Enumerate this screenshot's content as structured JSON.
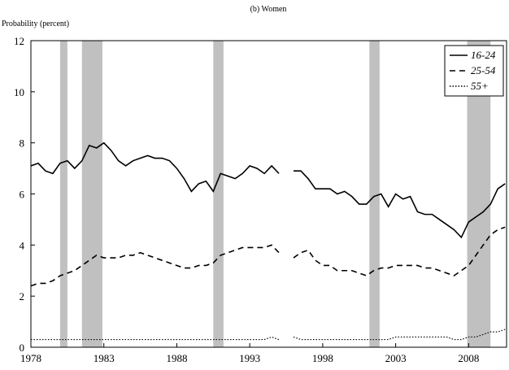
{
  "chart_data": {
    "type": "line",
    "title": "(b) Women",
    "y_label": "Probability (percent)",
    "x": [
      1978,
      1978.5,
      1979,
      1979.5,
      1980,
      1980.5,
      1981,
      1981.5,
      1982,
      1982.5,
      1983,
      1983.5,
      1984,
      1984.5,
      1985,
      1985.5,
      1986,
      1986.5,
      1987,
      1987.5,
      1988,
      1988.5,
      1989,
      1989.5,
      1990,
      1990.5,
      1991,
      1991.5,
      1992,
      1992.5,
      1993,
      1993.5,
      1994,
      1994.5,
      1995,
      1995.5,
      1996,
      1996.5,
      1997,
      1997.5,
      1998,
      1998.5,
      1999,
      1999.5,
      2000,
      2000.5,
      2001,
      2001.5,
      2002,
      2002.5,
      2003,
      2003.5,
      2004,
      2004.5,
      2005,
      2005.5,
      2006,
      2006.5,
      2007,
      2007.5,
      2008,
      2008.5,
      2009,
      2009.5,
      2010,
      2010.5
    ],
    "series": [
      {
        "name": "16-24",
        "color": "#000000",
        "dash": "none",
        "values": [
          7.1,
          7.2,
          6.9,
          6.8,
          7.2,
          7.3,
          7.0,
          7.3,
          7.9,
          7.8,
          8.0,
          7.7,
          7.3,
          7.1,
          7.3,
          7.4,
          7.5,
          7.4,
          7.4,
          7.3,
          7.0,
          6.6,
          6.1,
          6.4,
          6.5,
          6.1,
          6.8,
          6.7,
          6.6,
          6.8,
          7.1,
          7.0,
          6.8,
          7.1,
          6.8,
          null,
          6.9,
          6.9,
          6.6,
          6.2,
          6.2,
          6.2,
          6.0,
          6.1,
          5.9,
          5.6,
          5.6,
          5.9,
          6.0,
          5.5,
          6.0,
          5.8,
          5.9,
          5.3,
          5.2,
          5.2,
          5.0,
          4.8,
          4.6,
          4.3,
          4.9,
          5.1,
          5.3,
          5.6,
          6.2,
          6.4
        ]
      },
      {
        "name": "25-54",
        "color": "#000000",
        "dash": "7 5",
        "values": [
          2.4,
          2.5,
          2.5,
          2.6,
          2.8,
          2.9,
          3.0,
          3.2,
          3.4,
          3.6,
          3.5,
          3.5,
          3.5,
          3.6,
          3.6,
          3.7,
          3.6,
          3.5,
          3.4,
          3.3,
          3.2,
          3.1,
          3.1,
          3.2,
          3.2,
          3.3,
          3.6,
          3.7,
          3.8,
          3.9,
          3.9,
          3.9,
          3.9,
          4.0,
          3.7,
          null,
          3.5,
          3.7,
          3.8,
          3.4,
          3.2,
          3.2,
          3.0,
          3.0,
          3.0,
          2.9,
          2.8,
          3.0,
          3.1,
          3.1,
          3.2,
          3.2,
          3.2,
          3.2,
          3.1,
          3.1,
          3.0,
          2.9,
          2.8,
          3.0,
          3.2,
          3.6,
          4.0,
          4.4,
          4.6,
          4.7
        ]
      },
      {
        "name": "55+",
        "color": "#000000",
        "dash": "1.5 2",
        "values": [
          0.3,
          0.3,
          0.3,
          0.3,
          0.3,
          0.3,
          0.3,
          0.3,
          0.3,
          0.3,
          0.3,
          0.3,
          0.3,
          0.3,
          0.3,
          0.3,
          0.3,
          0.3,
          0.3,
          0.3,
          0.3,
          0.3,
          0.3,
          0.3,
          0.3,
          0.3,
          0.3,
          0.3,
          0.3,
          0.3,
          0.3,
          0.3,
          0.3,
          0.4,
          0.3,
          null,
          0.4,
          0.3,
          0.3,
          0.3,
          0.3,
          0.3,
          0.3,
          0.3,
          0.3,
          0.3,
          0.3,
          0.3,
          0.3,
          0.3,
          0.4,
          0.4,
          0.4,
          0.4,
          0.4,
          0.4,
          0.4,
          0.4,
          0.3,
          0.3,
          0.4,
          0.4,
          0.5,
          0.6,
          0.6,
          0.7
        ]
      }
    ],
    "recessions": [
      [
        1980.0,
        1980.5
      ],
      [
        1981.5,
        1982.9
      ],
      [
        1990.5,
        1991.2
      ],
      [
        2001.2,
        2001.9
      ],
      [
        2007.9,
        2009.5
      ]
    ],
    "recession_color": "#c0c0c0",
    "xlim": [
      1978,
      2010.6
    ],
    "xticks": [
      1978,
      1983,
      1988,
      1993,
      1998,
      2003,
      2008
    ],
    "ylim": [
      0,
      12
    ],
    "yticks": [
      0,
      2,
      4,
      6,
      8,
      10,
      12
    ],
    "legend": "top-right"
  }
}
